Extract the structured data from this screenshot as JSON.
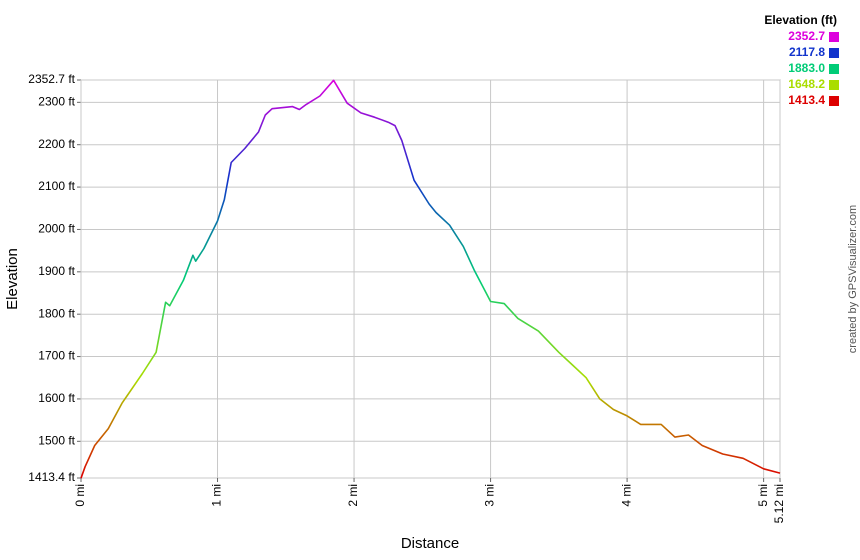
{
  "chart_data": {
    "type": "line",
    "x_label": "Distance",
    "y_label": "Elevation",
    "credit": "created by GPSVisualizer.com",
    "legend": {
      "title": "Elevation (ft)",
      "entries": [
        {
          "value": 2352.7,
          "label": "2352.7",
          "color": "#dd00dd"
        },
        {
          "value": 2117.8,
          "label": "2117.8",
          "color": "#1133cc"
        },
        {
          "value": 1883.0,
          "label": "1883.0",
          "color": "#00cc77"
        },
        {
          "value": 1648.2,
          "label": "1648.2",
          "color": "#aadd00"
        },
        {
          "value": 1413.4,
          "label": "1413.4",
          "color": "#dd0000"
        }
      ]
    },
    "x": [
      0,
      0.03,
      0.1,
      0.2,
      0.3,
      0.45,
      0.55,
      0.62,
      0.65,
      0.75,
      0.82,
      0.84,
      0.9,
      1.0,
      1.05,
      1.1,
      1.2,
      1.3,
      1.35,
      1.4,
      1.55,
      1.6,
      1.65,
      1.75,
      1.85,
      1.95,
      2.05,
      2.15,
      2.25,
      2.3,
      2.35,
      2.44,
      2.55,
      2.6,
      2.7,
      2.8,
      2.88,
      3.0,
      3.1,
      3.2,
      3.35,
      3.5,
      3.6,
      3.7,
      3.8,
      3.9,
      4.0,
      4.1,
      4.25,
      4.35,
      4.45,
      4.55,
      4.7,
      4.85,
      5.0,
      5.12
    ],
    "values": [
      1413,
      1440,
      1490,
      1530,
      1590,
      1660,
      1710,
      1828,
      1820,
      1880,
      1939,
      1925,
      1955,
      2020,
      2070,
      2158,
      2191,
      2230,
      2270,
      2285,
      2290,
      2283,
      2295,
      2315,
      2352,
      2298,
      2275,
      2265,
      2253,
      2245,
      2210,
      2116,
      2060,
      2040,
      2010,
      1960,
      1904,
      1830,
      1825,
      1790,
      1760,
      1710,
      1680,
      1650,
      1600,
      1575,
      1560,
      1540,
      1540,
      1510,
      1515,
      1490,
      1470,
      1460,
      1435,
      1425
    ],
    "xlim": [
      0,
      5.12
    ],
    "xticks": [
      {
        "value": 0,
        "label": "0 mi"
      },
      {
        "value": 1,
        "label": "1 mi"
      },
      {
        "value": 2,
        "label": "2 mi"
      },
      {
        "value": 3,
        "label": "3 mi"
      },
      {
        "value": 4,
        "label": "4 mi"
      },
      {
        "value": 5,
        "label": "5 mi"
      },
      {
        "value": 5.12,
        "label": "5.12 mi"
      }
    ],
    "ylim": [
      1413.4,
      2352.7
    ],
    "yticks": [
      {
        "value": 1413.4,
        "label": "1413.4 ft"
      },
      {
        "value": 1500,
        "label": "1500 ft"
      },
      {
        "value": 1600,
        "label": "1600 ft"
      },
      {
        "value": 1700,
        "label": "1700 ft"
      },
      {
        "value": 1800,
        "label": "1800 ft"
      },
      {
        "value": 1900,
        "label": "1900 ft"
      },
      {
        "value": 2000,
        "label": "2000 ft"
      },
      {
        "value": 2100,
        "label": "2100 ft"
      },
      {
        "value": 2200,
        "label": "2200 ft"
      },
      {
        "value": 2300,
        "label": "2300 ft"
      },
      {
        "value": 2352.7,
        "label": "2352.7 ft"
      }
    ],
    "grid": true
  }
}
